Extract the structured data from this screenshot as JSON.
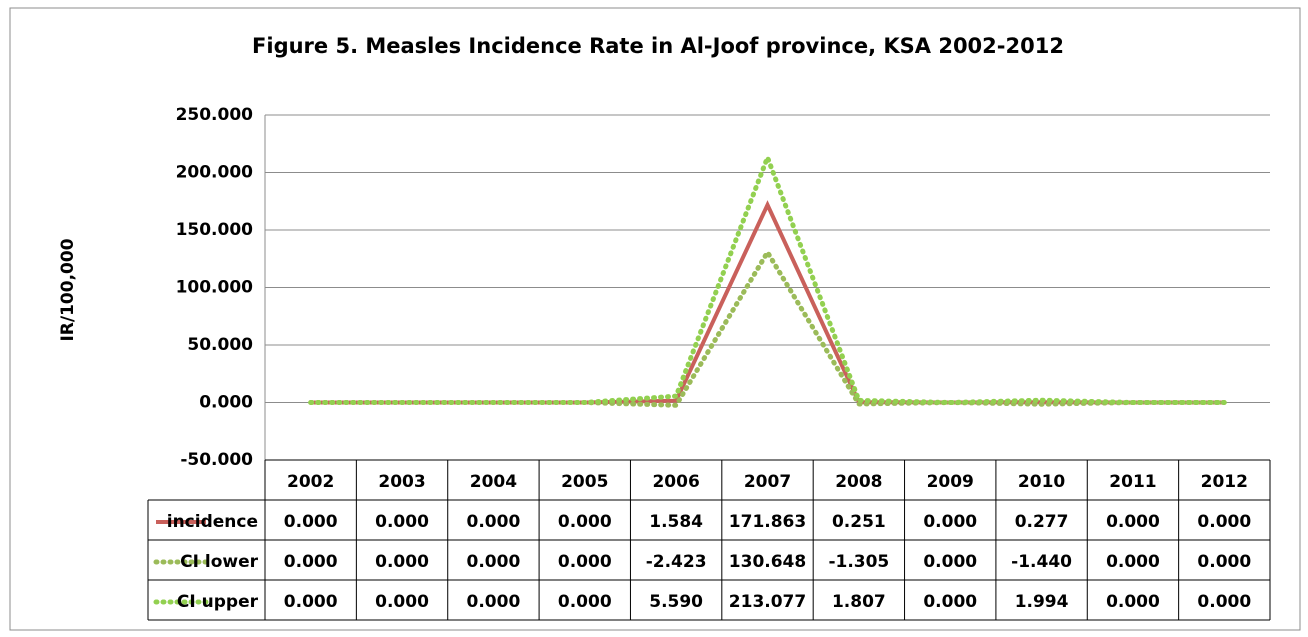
{
  "chart_data": {
    "type": "line",
    "title": "Figure 5. Measles Incidence Rate in Al-Joof province, KSA 2002-2012",
    "y_label": "IR/100,000",
    "categories": [
      "2002",
      "2003",
      "2004",
      "2005",
      "2006",
      "2007",
      "2008",
      "2009",
      "2010",
      "2011",
      "2012"
    ],
    "series": [
      {
        "name": "incidence",
        "color": "#c9605b",
        "dash": "solid",
        "values": [
          0,
          0,
          0,
          0,
          1.584,
          171.863,
          0.251,
          0,
          0.277,
          0,
          0
        ],
        "value_labels": [
          "0.000",
          "0.000",
          "0.000",
          "0.000",
          "1.584",
          "171.863",
          "0.251",
          "0.000",
          "0.277",
          "0.000",
          "0.000"
        ]
      },
      {
        "name": "CI lower",
        "color": "#9bbb59",
        "dash": "dotted",
        "values": [
          0,
          0,
          0,
          0,
          -2.423,
          130.648,
          -1.305,
          0,
          -1.44,
          0,
          0
        ],
        "value_labels": [
          "0.000",
          "0.000",
          "0.000",
          "0.000",
          "-2.423",
          "130.648",
          "-1.305",
          "0.000",
          "-1.440",
          "0.000",
          "0.000"
        ]
      },
      {
        "name": "CI upper",
        "color": "#92d050",
        "dash": "dotted",
        "values": [
          0,
          0,
          0,
          0,
          5.59,
          213.077,
          1.807,
          0,
          1.994,
          0,
          0
        ],
        "value_labels": [
          "0.000",
          "0.000",
          "0.000",
          "0.000",
          "5.590",
          "213.077",
          "1.807",
          "0.000",
          "1.994",
          "0.000",
          "0.000"
        ]
      }
    ],
    "ylim": [
      -50,
      250
    ],
    "yticks": [
      {
        "value": -50,
        "label": "-50.000"
      },
      {
        "value": 0,
        "label": "0.000"
      },
      {
        "value": 50,
        "label": "50.000"
      },
      {
        "value": 100,
        "label": "100.000"
      },
      {
        "value": 150,
        "label": "150.000"
      },
      {
        "value": 200,
        "label": "200.000"
      },
      {
        "value": 250,
        "label": "250.000"
      }
    ],
    "grid": true
  }
}
